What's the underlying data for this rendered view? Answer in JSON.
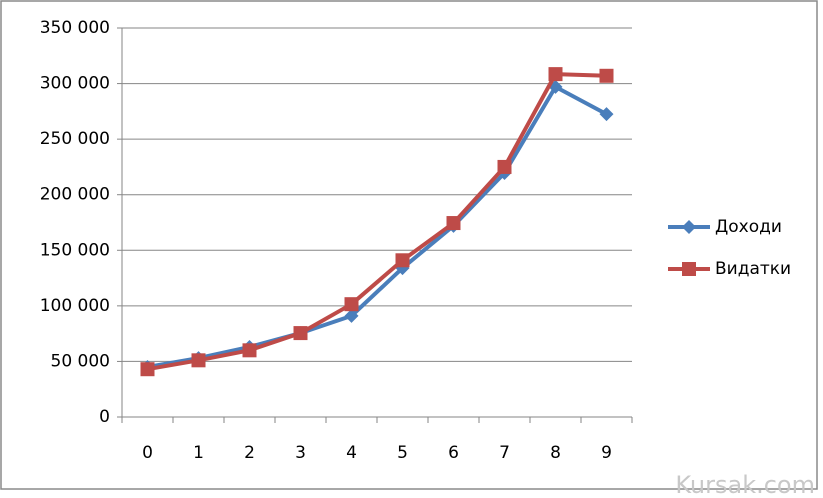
{
  "chart_data": {
    "type": "line",
    "categories": [
      "0",
      "1",
      "2",
      "3",
      "4",
      "5",
      "6",
      "7",
      "8",
      "9"
    ],
    "series": [
      {
        "name": "Доходи",
        "color": "#4a7ebb",
        "marker": "diamond",
        "values": [
          45000,
          53000,
          63000,
          75500,
          91000,
          134000,
          172000,
          219500,
          297000,
          272500
        ]
      },
      {
        "name": "Видатки",
        "color": "#be4b48",
        "marker": "square",
        "values": [
          43000,
          51000,
          60000,
          75500,
          101500,
          141000,
          174500,
          225000,
          308500,
          307000
        ]
      }
    ],
    "ylim": [
      0,
      350000
    ],
    "yticks": [
      0,
      {
        "value": 50000,
        "label": "50 000"
      },
      {
        "value": 100000,
        "label": "100 000"
      },
      {
        "value": 150000,
        "label": "150 000"
      },
      {
        "value": 200000,
        "label": "200 000"
      },
      {
        "value": 250000,
        "label": "250 000"
      },
      {
        "value": 300000,
        "label": "300 000"
      },
      {
        "value": 350000,
        "label": "350 000"
      }
    ],
    "grid": true,
    "legend": "right"
  },
  "watermark": "Kursak.com"
}
